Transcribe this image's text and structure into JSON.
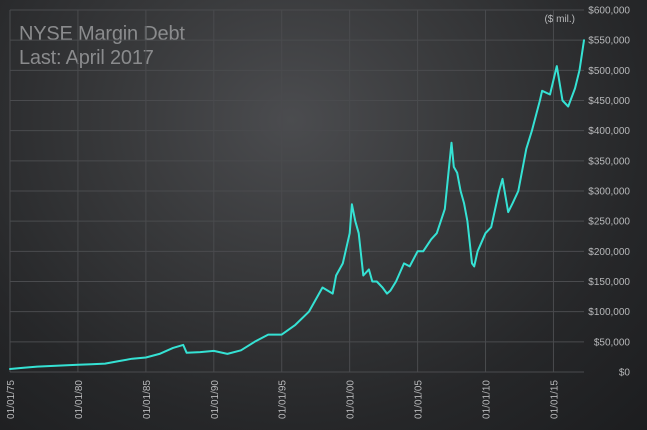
{
  "chart_data": {
    "type": "line",
    "title": "NYSE Margin Debt",
    "subtitle": "Last: April 2017",
    "unit_label": "($ mil.)",
    "ylim": [
      0,
      600000
    ],
    "y_ticks": [
      0,
      50000,
      100000,
      150000,
      200000,
      250000,
      300000,
      350000,
      400000,
      450000,
      500000,
      550000,
      600000
    ],
    "y_tick_labels": [
      "$0",
      "$50,000",
      "$100,000",
      "$150,000",
      "$200,000",
      "$250,000",
      "$300,000",
      "$350,000",
      "$400,000",
      "$450,000",
      "$500,000",
      "$550,000",
      "$600,000"
    ],
    "y_axis_position": "right",
    "xlim": [
      "1975-01-01",
      "2017-04-01"
    ],
    "x_ticks": [
      "1975-01-01",
      "1980-01-01",
      "1985-01-01",
      "1990-01-01",
      "1995-01-01",
      "2000-01-01",
      "2005-01-01",
      "2010-01-01",
      "2015-01-01"
    ],
    "x_tick_labels": [
      "01/01/75",
      "01/01/80",
      "01/01/85",
      "01/01/90",
      "01/01/95",
      "01/01/00",
      "01/01/05",
      "01/01/10",
      "01/01/15"
    ],
    "grid": true,
    "line_color": "#35e2d4",
    "series": [
      {
        "x": [
          "1975-01-01",
          "1976-01-01",
          "1977-01-01",
          "1978-01-01",
          "1979-01-01",
          "1980-01-01",
          "1981-01-01",
          "1982-01-01",
          "1983-01-01",
          "1984-01-01",
          "1985-01-01",
          "1986-01-01",
          "1987-01-01",
          "1987-10-01",
          "1988-01-01",
          "1989-01-01",
          "1990-01-01",
          "1991-01-01",
          "1992-01-01",
          "1993-01-01",
          "1994-01-01",
          "1995-01-01",
          "1996-01-01",
          "1997-01-01",
          "1998-01-01",
          "1998-10-01",
          "1999-01-01",
          "1999-07-01",
          "2000-01-01",
          "2000-03-01",
          "2000-06-01",
          "2000-09-01",
          "2001-01-01",
          "2001-06-01",
          "2001-09-01",
          "2002-01-01",
          "2002-06-01",
          "2002-10-01",
          "2003-01-01",
          "2003-06-01",
          "2004-01-01",
          "2004-06-01",
          "2005-01-01",
          "2005-06-01",
          "2006-01-01",
          "2006-06-01",
          "2007-01-01",
          "2007-07-01",
          "2007-09-01",
          "2007-12-01",
          "2008-03-01",
          "2008-06-01",
          "2008-09-01",
          "2009-01-01",
          "2009-03-01",
          "2009-06-01",
          "2010-01-01",
          "2010-06-01",
          "2011-01-01",
          "2011-04-01",
          "2011-09-01",
          "2012-01-01",
          "2012-06-01",
          "2013-01-01",
          "2013-06-01",
          "2014-01-01",
          "2014-03-01",
          "2014-10-01",
          "2015-04-01",
          "2015-09-01",
          "2016-02-01",
          "2016-08-01",
          "2016-12-01",
          "2017-04-01"
        ],
        "values": [
          5000,
          7000,
          9000,
          10000,
          11000,
          12000,
          13000,
          14000,
          18000,
          22000,
          24000,
          30000,
          40000,
          45000,
          32000,
          33000,
          35000,
          30000,
          36000,
          50000,
          62000,
          62000,
          78000,
          100000,
          140000,
          130000,
          160000,
          180000,
          230000,
          278000,
          250000,
          230000,
          160000,
          170000,
          150000,
          150000,
          140000,
          130000,
          135000,
          150000,
          180000,
          175000,
          200000,
          200000,
          220000,
          230000,
          270000,
          380000,
          340000,
          330000,
          300000,
          280000,
          250000,
          180000,
          175000,
          200000,
          230000,
          240000,
          300000,
          320000,
          265000,
          280000,
          300000,
          370000,
          400000,
          450000,
          466000,
          460000,
          507000,
          450000,
          440000,
          470000,
          500000,
          550000
        ]
      }
    ]
  }
}
